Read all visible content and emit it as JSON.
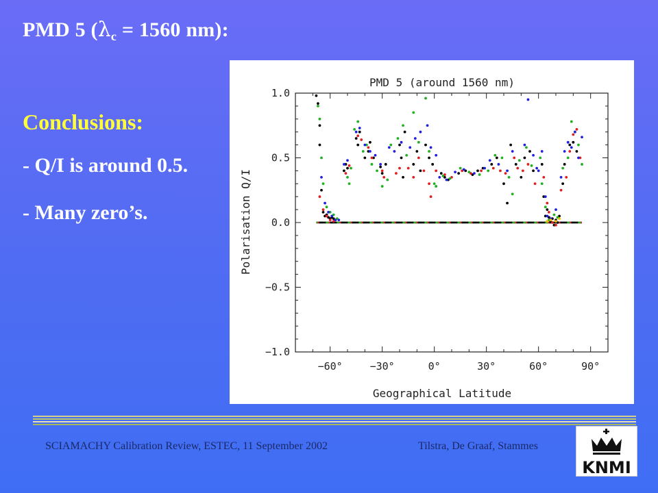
{
  "slide": {
    "title_prefix": "PMD 5 (",
    "title_lambda": "λ",
    "title_sub": "c",
    "title_suffix": " = 1560 nm):",
    "conclusions_heading": "Conclusions:",
    "bullets": [
      "- Q/I is around 0.5.",
      "- Many zero’s."
    ],
    "footer_left": "SCIAMACHY Calibration Review, ESTEC, 11 September 2002",
    "footer_right": "Tilstra, De Graaf, Stammes",
    "logo_text": "KNMI",
    "colors": {
      "background_top": "#6a6cf6",
      "background_bottom": "#3f6ef4",
      "heading_yellow": "#ffff3a",
      "text_white": "#ffffff",
      "footer_rule": [
        "#d4d08a",
        "#b9c46a",
        "#e8e2b0",
        "#a8b85c"
      ],
      "footer_text": "#1a2a66"
    }
  },
  "chart_data": {
    "type": "scatter",
    "title": "PMD 5 (around 1560 nm)",
    "xlabel": "Geographical Latitude",
    "ylabel": "Polarisation Q/I",
    "xlim": [
      -80,
      100
    ],
    "ylim": [
      -1.0,
      1.0
    ],
    "xticks": [
      -60,
      -30,
      0,
      30,
      60,
      90
    ],
    "xtick_labels": [
      "−60°",
      "−30°",
      "0°",
      "30°",
      "60°",
      "90°"
    ],
    "yticks": [
      -1.0,
      -0.5,
      0.0,
      0.5,
      1.0
    ],
    "ytick_labels": [
      "−1.0",
      "−0.5",
      "0.0",
      "0.5",
      "1.0"
    ],
    "grid": false,
    "series": [
      {
        "color": "#000000",
        "points": [
          [
            -68,
            0.98
          ],
          [
            -67,
            0.92
          ],
          [
            -66,
            0.75
          ],
          [
            -66,
            0.6
          ],
          [
            -65,
            0.25
          ],
          [
            -64,
            0.08
          ],
          [
            -63,
            0.05
          ],
          [
            -62,
            0.06
          ],
          [
            -61,
            0.04
          ],
          [
            -60,
            0.03
          ],
          [
            -59,
            0.04
          ],
          [
            -58,
            0.03
          ],
          [
            -57,
            0.02
          ],
          [
            -52,
            0.4
          ],
          [
            -51,
            0.45
          ],
          [
            -50,
            0.42
          ],
          [
            -45,
            0.65
          ],
          [
            -44,
            0.6
          ],
          [
            -43,
            0.7
          ],
          [
            -40,
            0.5
          ],
          [
            -38,
            0.55
          ],
          [
            -37,
            0.62
          ],
          [
            -35,
            0.5
          ],
          [
            -31,
            0.43
          ],
          [
            -30,
            0.38
          ],
          [
            -28,
            0.45
          ],
          [
            -20,
            0.6
          ],
          [
            -19,
            0.5
          ],
          [
            -18,
            0.35
          ],
          [
            -17,
            0.7
          ],
          [
            -12,
            0.45
          ],
          [
            -10,
            0.55
          ],
          [
            -8,
            0.4
          ],
          [
            -5,
            0.6
          ],
          [
            -3,
            0.5
          ],
          [
            -1,
            0.45
          ],
          [
            4,
            0.38
          ],
          [
            6,
            0.35
          ],
          [
            8,
            0.33
          ],
          [
            14,
            0.38
          ],
          [
            18,
            0.4
          ],
          [
            22,
            0.37
          ],
          [
            25,
            0.4
          ],
          [
            28,
            0.42
          ],
          [
            33,
            0.45
          ],
          [
            36,
            0.5
          ],
          [
            40,
            0.3
          ],
          [
            42,
            0.15
          ],
          [
            44,
            0.6
          ],
          [
            47,
            0.45
          ],
          [
            50,
            0.35
          ],
          [
            52,
            0.5
          ],
          [
            55,
            0.55
          ],
          [
            57,
            0.4
          ],
          [
            62,
            0.45
          ],
          [
            63,
            0.2
          ],
          [
            64,
            0.05
          ],
          [
            65,
            0.1
          ],
          [
            66,
            0.04
          ],
          [
            67,
            0.01
          ],
          [
            68,
            0.03
          ],
          [
            69,
            -0.02
          ],
          [
            70,
            0.02
          ],
          [
            71,
            0.0
          ],
          [
            72,
            0.05
          ],
          [
            74,
            0.3
          ],
          [
            75,
            0.45
          ],
          [
            78,
            0.6
          ],
          [
            80,
            0.62
          ],
          [
            82,
            0.55
          ]
        ]
      },
      {
        "color": "#e02020",
        "points": [
          [
            -66,
            0.2
          ],
          [
            -64,
            0.1
          ],
          [
            -62,
            0.05
          ],
          [
            -60,
            0.02
          ],
          [
            -58,
            0.01
          ],
          [
            -51,
            0.38
          ],
          [
            -49,
            0.44
          ],
          [
            -44,
            0.67
          ],
          [
            -42,
            0.64
          ],
          [
            -38,
            0.58
          ],
          [
            -36,
            0.5
          ],
          [
            -30,
            0.4
          ],
          [
            -29,
            0.35
          ],
          [
            -22,
            0.38
          ],
          [
            -20,
            0.42
          ],
          [
            -15,
            0.42
          ],
          [
            -12,
            0.35
          ],
          [
            -9,
            0.5
          ],
          [
            -6,
            0.4
          ],
          [
            -3,
            0.3
          ],
          [
            -2,
            0.2
          ],
          [
            1,
            0.4
          ],
          [
            6,
            0.37
          ],
          [
            10,
            0.35
          ],
          [
            16,
            0.4
          ],
          [
            21,
            0.38
          ],
          [
            27,
            0.4
          ],
          [
            34,
            0.42
          ],
          [
            38,
            0.4
          ],
          [
            41,
            0.38
          ],
          [
            46,
            0.5
          ],
          [
            48,
            0.42
          ],
          [
            51,
            0.4
          ],
          [
            54,
            0.45
          ],
          [
            58,
            0.3
          ],
          [
            63,
            0.35
          ],
          [
            65,
            0.15
          ],
          [
            66,
            0.08
          ],
          [
            68,
            0.0
          ],
          [
            70,
            -0.02
          ],
          [
            73,
            0.25
          ],
          [
            76,
            0.35
          ],
          [
            78,
            0.55
          ],
          [
            80,
            0.68
          ],
          [
            82,
            0.72
          ],
          [
            84,
            0.5
          ]
        ]
      },
      {
        "color": "#20b020",
        "points": [
          [
            -67,
            0.9
          ],
          [
            -66,
            0.8
          ],
          [
            -65,
            0.5
          ],
          [
            -64,
            0.3
          ],
          [
            -62,
            0.12
          ],
          [
            -60,
            0.08
          ],
          [
            -58,
            0.06
          ],
          [
            -56,
            0.03
          ],
          [
            -50,
            0.35
          ],
          [
            -49,
            0.3
          ],
          [
            -48,
            0.42
          ],
          [
            -46,
            0.72
          ],
          [
            -44,
            0.78
          ],
          [
            -41,
            0.55
          ],
          [
            -39,
            0.6
          ],
          [
            -36,
            0.45
          ],
          [
            -33,
            0.4
          ],
          [
            -30,
            0.28
          ],
          [
            -27,
            0.33
          ],
          [
            -25,
            0.6
          ],
          [
            -21,
            0.65
          ],
          [
            -18,
            0.75
          ],
          [
            -16,
            0.52
          ],
          [
            -12,
            0.85
          ],
          [
            -9,
            0.62
          ],
          [
            -5,
            0.96
          ],
          [
            -3,
            0.55
          ],
          [
            0,
            0.3
          ],
          [
            1,
            0.28
          ],
          [
            5,
            0.36
          ],
          [
            9,
            0.34
          ],
          [
            15,
            0.42
          ],
          [
            20,
            0.39
          ],
          [
            26,
            0.37
          ],
          [
            31,
            0.4
          ],
          [
            35,
            0.52
          ],
          [
            39,
            0.5
          ],
          [
            43,
            0.35
          ],
          [
            45,
            0.22
          ],
          [
            49,
            0.48
          ],
          [
            53,
            0.58
          ],
          [
            56,
            0.44
          ],
          [
            61,
            0.5
          ],
          [
            62,
            0.3
          ],
          [
            64,
            0.12
          ],
          [
            66,
            0.02
          ],
          [
            69,
            0.06
          ],
          [
            71,
            0.04
          ],
          [
            74,
            0.42
          ],
          [
            77,
            0.5
          ],
          [
            79,
            0.78
          ],
          [
            81,
            0.7
          ],
          [
            83,
            0.6
          ],
          [
            85,
            0.45
          ]
        ]
      },
      {
        "color": "#2020e0",
        "points": [
          [
            -65,
            0.35
          ],
          [
            -63,
            0.15
          ],
          [
            -61,
            0.08
          ],
          [
            -59,
            0.05
          ],
          [
            -57,
            0.02
          ],
          [
            -55,
            0.02
          ],
          [
            -52,
            0.45
          ],
          [
            -50,
            0.48
          ],
          [
            -45,
            0.7
          ],
          [
            -43,
            0.73
          ],
          [
            -40,
            0.6
          ],
          [
            -37,
            0.55
          ],
          [
            -34,
            0.52
          ],
          [
            -31,
            0.45
          ],
          [
            -26,
            0.58
          ],
          [
            -23,
            0.55
          ],
          [
            -19,
            0.62
          ],
          [
            -14,
            0.58
          ],
          [
            -11,
            0.65
          ],
          [
            -8,
            0.7
          ],
          [
            -4,
            0.75
          ],
          [
            -2,
            0.58
          ],
          [
            1,
            0.52
          ],
          [
            3,
            0.35
          ],
          [
            7,
            0.33
          ],
          [
            12,
            0.39
          ],
          [
            17,
            0.41
          ],
          [
            23,
            0.38
          ],
          [
            29,
            0.42
          ],
          [
            32,
            0.48
          ],
          [
            37,
            0.45
          ],
          [
            42,
            0.4
          ],
          [
            45,
            0.55
          ],
          [
            52,
            0.6
          ],
          [
            54,
            0.95
          ],
          [
            57,
            0.52
          ],
          [
            59,
            0.42
          ],
          [
            60,
            0.4
          ],
          [
            62,
            0.55
          ],
          [
            64,
            0.2
          ],
          [
            65,
            0.05
          ],
          [
            67,
            0.03
          ],
          [
            70,
            0.1
          ],
          [
            73,
            0.35
          ],
          [
            75,
            0.55
          ],
          [
            77,
            0.62
          ],
          [
            79,
            0.58
          ],
          [
            81,
            0.7
          ],
          [
            83,
            0.5
          ],
          [
            85,
            0.66
          ]
        ]
      },
      {
        "color": "#f0c000",
        "points": [
          [
            65,
            0.01
          ],
          [
            67,
            0.02
          ],
          [
            70,
            0.01
          ],
          [
            72,
            0.03
          ]
        ]
      }
    ],
    "zero_line": {
      "x_range": [
        -68,
        85
      ],
      "y": 0.0,
      "colors": [
        "#2020e0",
        "#e02020",
        "#20b020",
        "#000000"
      ]
    }
  }
}
